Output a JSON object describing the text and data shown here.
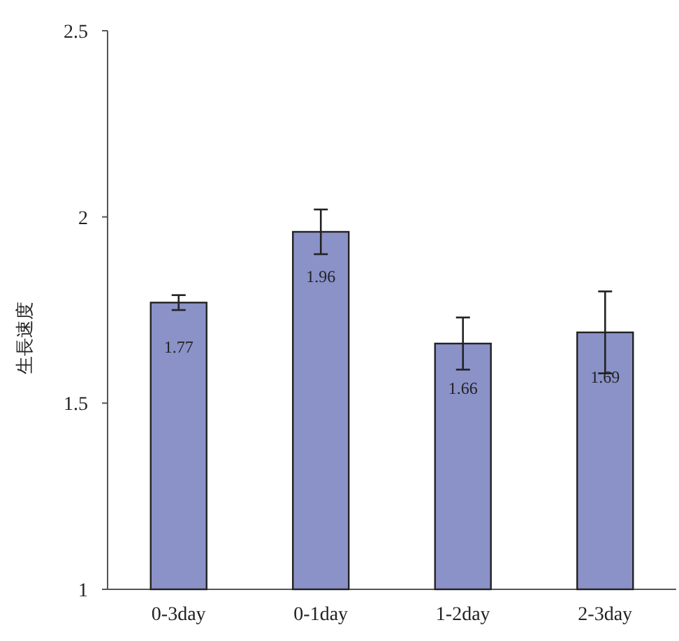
{
  "chart_data": {
    "type": "bar",
    "ylabel": "生長速度",
    "categories": [
      "0-3day",
      "0-1day",
      "1-2day",
      "2-3day"
    ],
    "values": [
      1.77,
      1.96,
      1.66,
      1.69
    ],
    "errors": [
      0.02,
      0.06,
      0.07,
      0.11
    ],
    "color": "#8a92c8",
    "ylim": [
      1,
      2.5
    ],
    "yticks": [
      1,
      1.5,
      2,
      2.5
    ],
    "data_labels": true
  }
}
